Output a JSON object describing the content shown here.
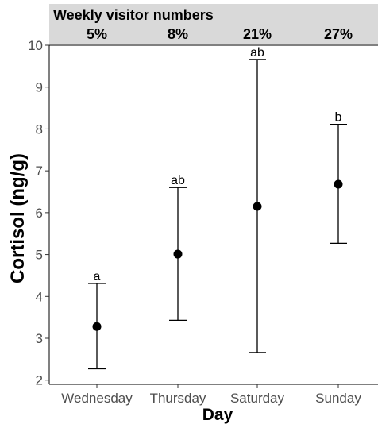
{
  "chart_data": {
    "type": "scatter",
    "title": "",
    "xlabel": "Day",
    "ylabel": "Cortisol (ng/g)",
    "ylim": [
      1.9,
      10.0
    ],
    "yticks": [
      2,
      3,
      4,
      5,
      6,
      7,
      8,
      9,
      10
    ],
    "grid": false,
    "categories": [
      "Wednesday",
      "Thursday",
      "Saturday",
      "Sunday"
    ],
    "values": [
      3.28,
      5.01,
      6.15,
      6.68
    ],
    "error_low": [
      2.27,
      3.43,
      2.66,
      5.27
    ],
    "error_high": [
      4.31,
      6.6,
      9.66,
      8.11
    ],
    "significance_letters": [
      "a",
      "ab",
      "ab",
      "b"
    ],
    "top_strip": {
      "label": "Weekly visitor numbers",
      "values": [
        "5%",
        "8%",
        "21%",
        "27%"
      ]
    }
  }
}
